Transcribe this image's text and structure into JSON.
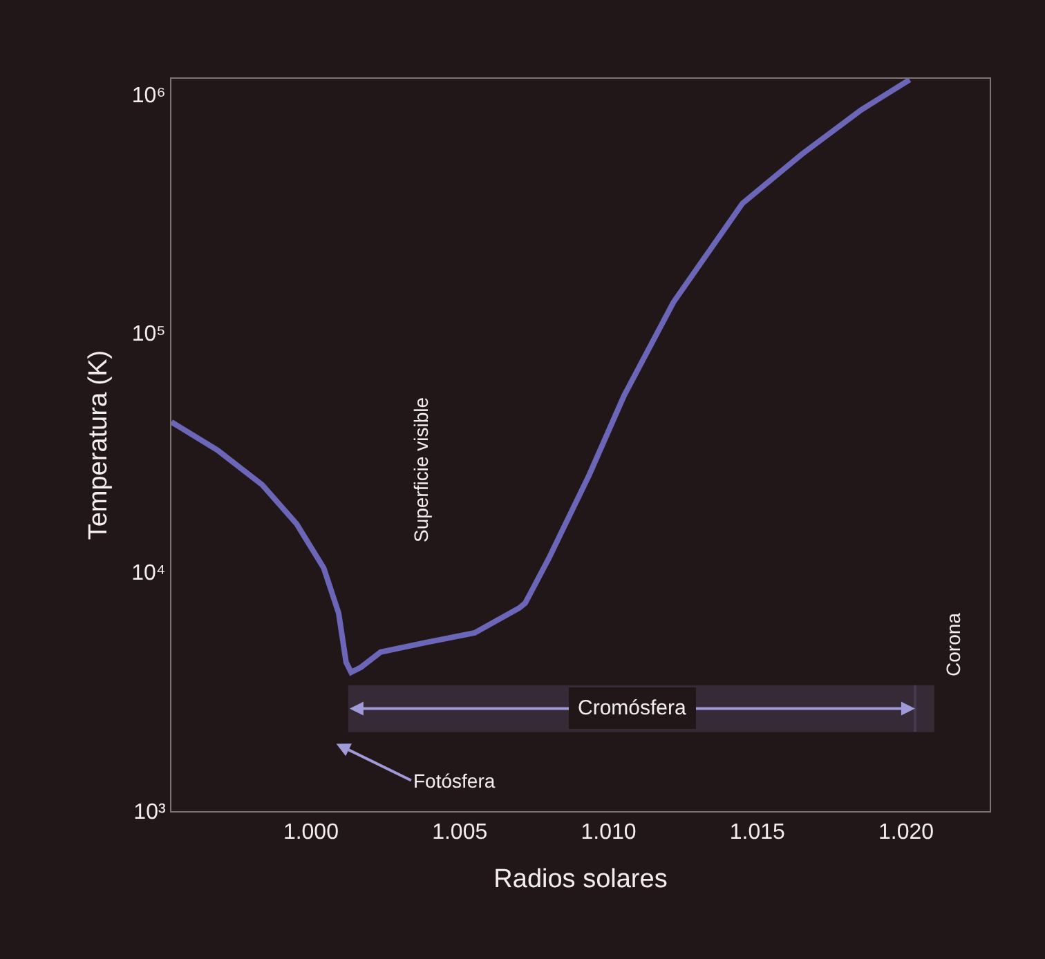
{
  "chart_data": {
    "type": "line",
    "xlabel": "Radios solares",
    "ylabel": "Temperatura (K)",
    "x": [
      0.99531,
      0.99686,
      0.99836,
      0.99952,
      1.00043,
      1.00093,
      1.00118,
      1.00135,
      1.00168,
      1.00234,
      1.00384,
      1.0055,
      1.007,
      1.0072,
      1.00799,
      1.00935,
      1.01052,
      1.01218,
      1.0145,
      1.0165,
      1.0185,
      1.02012
    ],
    "series": [
      {
        "color": "#6b66b8",
        "values": [
          42500,
          32400,
          23200,
          15900,
          10400,
          6740,
          4200,
          3810,
          4000,
          4630,
          5070,
          5570,
          7080,
          7420,
          11400,
          25500,
          54700,
          134600,
          349000,
          561000,
          861000,
          1150000
        ]
      }
    ],
    "log": "y",
    "xlim": [
      0.99531,
      1.02281
    ],
    "ylim": [
      1000,
      1160000
    ],
    "xticks": [
      {
        "value": 1.0,
        "label": "1.000"
      },
      {
        "value": 1.005,
        "label": "1.005"
      },
      {
        "value": 1.01,
        "label": "1.010"
      },
      {
        "value": 1.015,
        "label": "1.015"
      },
      {
        "value": 1.02,
        "label": "1.020"
      }
    ],
    "yticks": [
      {
        "value": 1000,
        "label": "10³"
      },
      {
        "value": 10000,
        "label": "10⁴"
      },
      {
        "value": 100000,
        "label": "10⁵"
      },
      {
        "value": 1000000,
        "label": "10⁶"
      }
    ],
    "grid": false,
    "marker": "none",
    "line_style": "solid",
    "annotations": [
      "Superficie visible",
      "Fotósfera"
    ],
    "bands": [
      {
        "axis": "x",
        "from": 1.0013,
        "to": 1.0203,
        "label": "Cromósfera",
        "color": "#a09ad8"
      },
      {
        "axis": "x",
        "from": 1.0203,
        "to": 1.0209,
        "label": "Corona",
        "color": "#a09ad8"
      }
    ]
  }
}
